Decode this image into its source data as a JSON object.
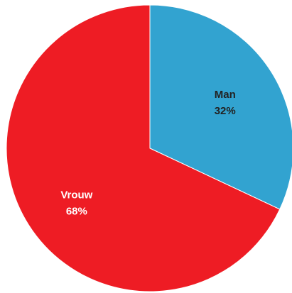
{
  "chart_data": {
    "type": "pie",
    "title": "",
    "slices": [
      {
        "label": "Man",
        "value": 32,
        "value_label": "32%",
        "color": "#32A3D0",
        "text_color": "#222222"
      },
      {
        "label": "Vrouw",
        "value": 68,
        "value_label": "68%",
        "color": "#EE1C24",
        "text_color": "#FFFFFF"
      }
    ],
    "start_angle_deg": 0,
    "direction": "clockwise",
    "legend": "none"
  }
}
